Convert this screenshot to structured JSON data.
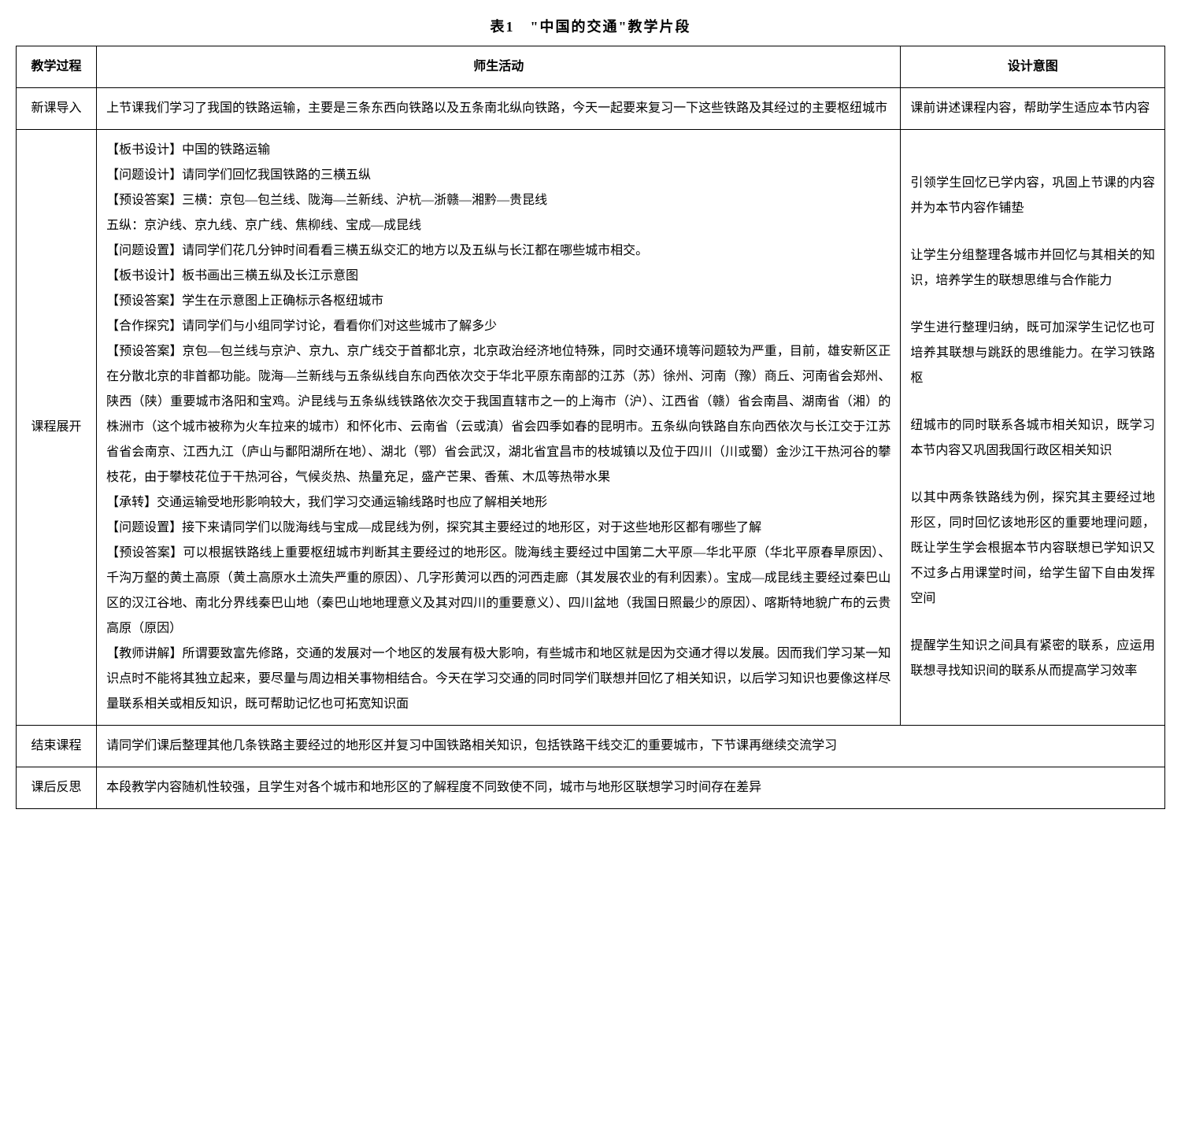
{
  "caption": "表1　\"中国的交通\"教学片段",
  "headers": {
    "stage": "教学过程",
    "activity": "师生活动",
    "intent": "设计意图"
  },
  "rows": {
    "intro": {
      "stage": "新课导入",
      "activity": "上节课我们学习了我国的铁路运输，主要是三条东西向铁路以及五条南北纵向铁路，今天一起要来复习一下这些铁路及其经过的主要枢纽城市",
      "intent": "课前讲述课程内容，帮助学生适应本节内容"
    },
    "develop": {
      "stage": "课程展开",
      "activity_lines": [
        "【板书设计】中国的铁路运输",
        "【问题设计】请同学们回忆我国铁路的三横五纵",
        "【预设答案】三横：京包—包兰线、陇海—兰新线、沪杭—浙赣—湘黔—贵昆线",
        "五纵：京沪线、京九线、京广线、焦柳线、宝成—成昆线",
        "【问题设置】请同学们花几分钟时间看看三横五纵交汇的地方以及五纵与长江都在哪些城市相交。",
        "【板书设计】板书画出三横五纵及长江示意图",
        "【预设答案】学生在示意图上正确标示各枢纽城市",
        "【合作探究】请同学们与小组同学讨论，看看你们对这些城市了解多少",
        "【预设答案】京包—包兰线与京沪、京九、京广线交于首都北京，北京政治经济地位特殊，同时交通环境等问题较为严重，目前，雄安新区正在分散北京的非首都功能。陇海—兰新线与五条纵线自东向西依次交于华北平原东南部的江苏（苏）徐州、河南（豫）商丘、河南省会郑州、陕西（陕）重要城市洛阳和宝鸡。沪昆线与五条纵线铁路依次交于我国直辖市之一的上海市（沪）、江西省（赣）省会南昌、湖南省（湘）的株洲市（这个城市被称为火车拉来的城市）和怀化市、云南省（云或滇）省会四季如春的昆明市。五条纵向铁路自东向西依次与长江交于江苏省省会南京、江西九江（庐山与鄱阳湖所在地）、湖北（鄂）省会武汉，湖北省宜昌市的枝城镇以及位于四川（川或蜀）金沙江干热河谷的攀枝花，由于攀枝花位于干热河谷，气候炎热、热量充足，盛产芒果、香蕉、木瓜等热带水果",
        "【承转】交通运输受地形影响较大，我们学习交通运输线路时也应了解相关地形",
        "【问题设置】接下来请同学们以陇海线与宝成—成昆线为例，探究其主要经过的地形区，对于这些地形区都有哪些了解",
        "【预设答案】可以根据铁路线上重要枢纽城市判断其主要经过的地形区。陇海线主要经过中国第二大平原—华北平原（华北平原春旱原因）、千沟万壑的黄土高原（黄土高原水土流失严重的原因）、几字形黄河以西的河西走廊（其发展农业的有利因素）。宝成—成昆线主要经过秦巴山区的汉江谷地、南北分界线秦巴山地（秦巴山地地理意义及其对四川的重要意义）、四川盆地（我国日照最少的原因）、喀斯特地貌广布的云贵高原（原因）",
        "【教师讲解】所谓要致富先修路，交通的发展对一个地区的发展有极大影响，有些城市和地区就是因为交通才得以发展。因而我们学习某一知识点时不能将其独立起来，要尽量与周边相关事物相结合。今天在学习交通的同时同学们联想并回忆了相关知识，以后学习知识也要像这样尽量联系相关或相反知识，既可帮助记忆也可拓宽知识面"
      ],
      "intent_blocks": [
        "引领学生回忆已学内容，巩固上节课的内容并为本节内容作铺垫",
        "让学生分组整理各城市并回忆与其相关的知识，培养学生的联想思维与合作能力",
        "学生进行整理归纳，既可加深学生记忆也可培养其联想与跳跃的思维能力。在学习铁路枢",
        "纽城市的同时联系各城市相关知识，既学习本节内容又巩固我国行政区相关知识",
        "以其中两条铁路线为例，探究其主要经过地形区，同时回忆该地形区的重要地理问题，既让学生学会根据本节内容联想已学知识又不过多占用课堂时间，给学生留下自由发挥空间",
        "提醒学生知识之间具有紧密的联系，应运用联想寻找知识间的联系从而提高学习效率"
      ]
    },
    "end": {
      "stage": "结束课程",
      "activity": "请同学们课后整理其他几条铁路主要经过的地形区并复习中国铁路相关知识，包括铁路干线交汇的重要城市，下节课再继续交流学习"
    },
    "reflect": {
      "stage": "课后反思",
      "activity": "本段教学内容随机性较强，且学生对各个城市和地形区的了解程度不同致使不同，城市与地形区联想学习时间存在差异"
    }
  }
}
